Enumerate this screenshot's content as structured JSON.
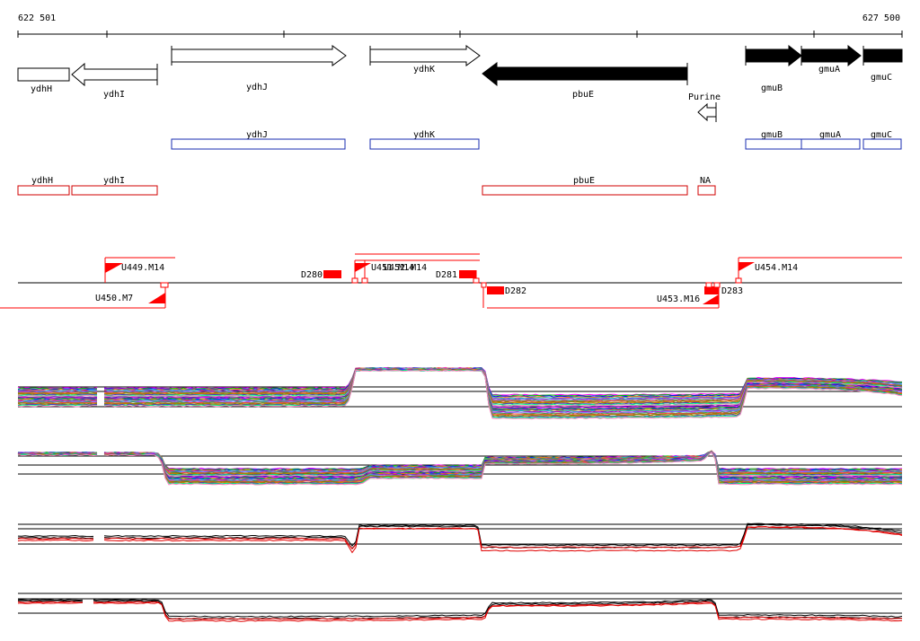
{
  "coords": {
    "start_label": "622 501",
    "end_label": "627 500"
  },
  "colors": {
    "annotation_stroke": "#1a2db0",
    "transcript_stroke": "#d00000",
    "promoter": "#ff0000",
    "gene_fill": "#000000",
    "profile_highlight": "#e00000",
    "profile_black": "#000000"
  },
  "genes": [
    {
      "name": "ydhH",
      "strand": "+",
      "filled": false
    },
    {
      "name": "ydhI",
      "strand": "-",
      "filled": false
    },
    {
      "name": "ydhJ",
      "strand": "+",
      "filled": false
    },
    {
      "name": "ydhK",
      "strand": "+",
      "filled": false
    },
    {
      "name": "pbuE",
      "strand": "-",
      "filled": true
    },
    {
      "name": "Purine",
      "strand": "-",
      "filled": false
    },
    {
      "name": "gmuB",
      "strand": "+",
      "filled": true
    },
    {
      "name": "gmuA",
      "strand": "+",
      "filled": true
    },
    {
      "name": "gmuC",
      "strand": "+",
      "filled": true
    }
  ],
  "annotation_boxes": [
    "ydhJ",
    "ydhK",
    "gmuB",
    "gmuA",
    "gmuC"
  ],
  "transcript_boxes": [
    "ydhH",
    "ydhI",
    "pbuE",
    "NA"
  ],
  "upshifts": [
    "U449.M14",
    "U450.M7",
    "U451.M14",
    "U452.M14",
    "U453.M16",
    "U454.M14"
  ],
  "downshifts": [
    "D280",
    "D281",
    "D282",
    "D283"
  ]
}
